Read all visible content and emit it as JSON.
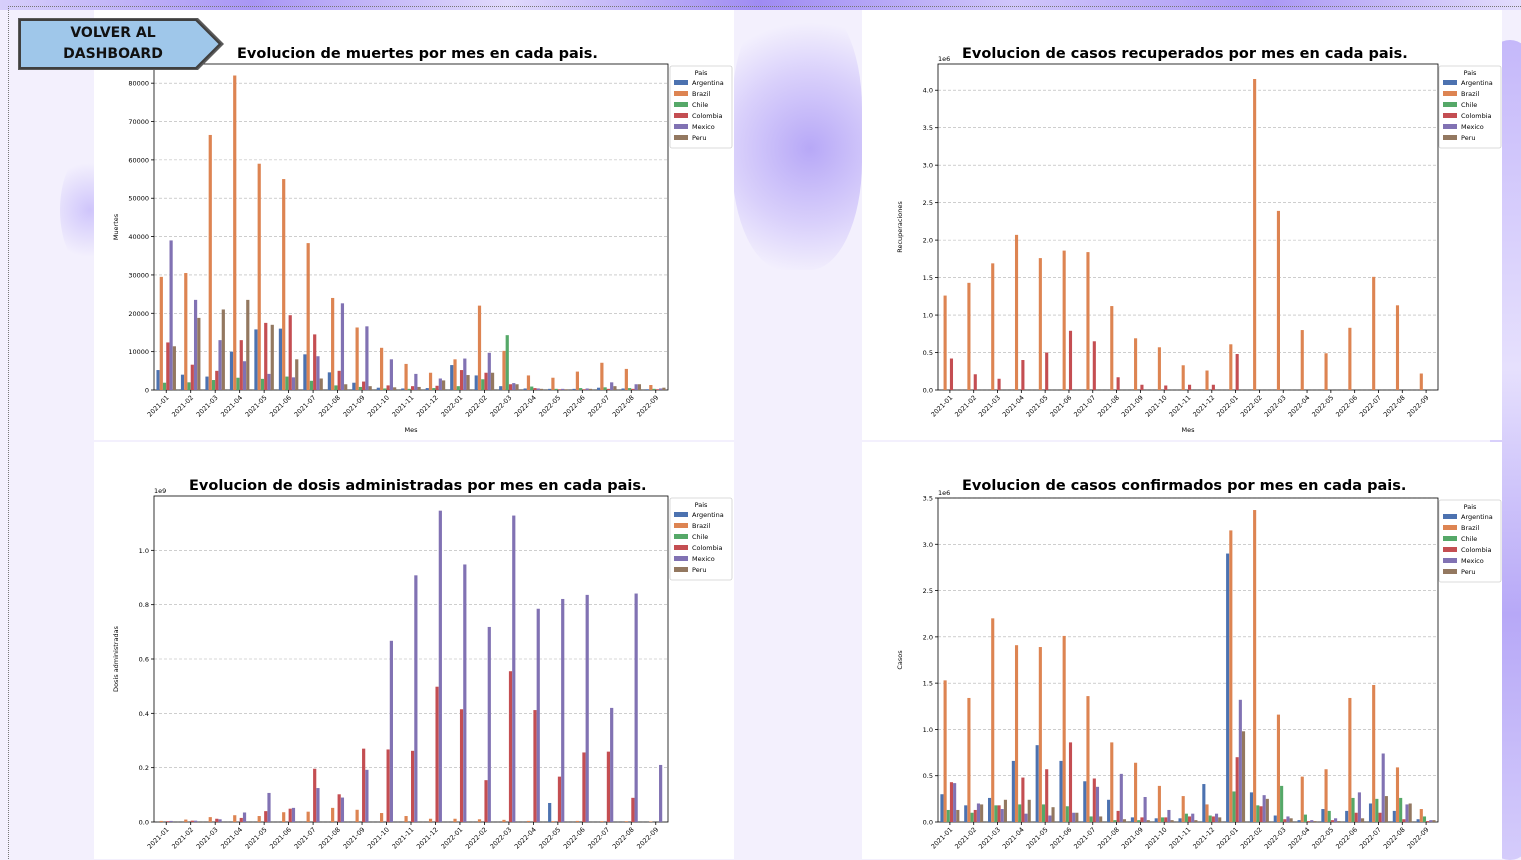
{
  "nav": {
    "back_button_label": "VOLVER AL DASHBOARD"
  },
  "colors": {
    "Argentina": "#4c72b0",
    "Brazil": "#dd8452",
    "Chile": "#55a868",
    "Colombia": "#c44e52",
    "Mexico": "#8172b3",
    "Peru": "#937860"
  },
  "chart_data": [
    {
      "id": "muertes",
      "type": "bar",
      "title": "Evolucion de muertes por mes en cada pais.",
      "xlabel": "Mes",
      "ylabel": "Muertes",
      "scale_label": "",
      "ylim": [
        0,
        85000
      ],
      "yticks": [
        0,
        10000,
        20000,
        30000,
        40000,
        50000,
        60000,
        70000,
        80000
      ],
      "ytick_labels": [
        "0",
        "10000",
        "20000",
        "30000",
        "40000",
        "50000",
        "60000",
        "70000",
        "80000"
      ],
      "legend_title": "Pais",
      "legend_position": "top-right",
      "grid": true,
      "categories": [
        "2021-01",
        "2021-02",
        "2021-03",
        "2021-04",
        "2021-05",
        "2021-06",
        "2021-07",
        "2021-08",
        "2021-09",
        "2021-10",
        "2021-11",
        "2021-12",
        "2022-01",
        "2022-02",
        "2022-03",
        "2022-04",
        "2022-05",
        "2022-06",
        "2022-07",
        "2022-08",
        "2022-09"
      ],
      "series": [
        {
          "name": "Argentina",
          "values": [
            5200,
            4000,
            3500,
            10000,
            15800,
            16000,
            9300,
            4600,
            1900,
            600,
            400,
            500,
            6500,
            3800,
            1000,
            400,
            300,
            300,
            600,
            400,
            200
          ]
        },
        {
          "name": "Brazil",
          "values": [
            29500,
            30500,
            66500,
            82000,
            59000,
            55000,
            38300,
            24000,
            16300,
            11000,
            6800,
            4500,
            8000,
            22000,
            10200,
            3800,
            3200,
            4800,
            7100,
            5500,
            1300
          ]
        },
        {
          "name": "Chile",
          "values": [
            1900,
            2000,
            2600,
            3200,
            2900,
            3500,
            2400,
            1200,
            800,
            400,
            300,
            500,
            1000,
            2800,
            14300,
            900,
            300,
            500,
            700,
            500,
            300
          ]
        },
        {
          "name": "Colombia",
          "values": [
            12400,
            6600,
            5000,
            13000,
            17500,
            19500,
            14500,
            5000,
            2200,
            1200,
            1000,
            1100,
            5200,
            4500,
            1500,
            500,
            200,
            200,
            300,
            300,
            200
          ]
        },
        {
          "name": "Mexico",
          "values": [
            39000,
            23500,
            13000,
            7500,
            4200,
            3300,
            8800,
            22600,
            16600,
            8000,
            4200,
            3000,
            8200,
            9700,
            1800,
            400,
            300,
            400,
            2000,
            1500,
            400
          ]
        },
        {
          "name": "Peru",
          "values": [
            11400,
            18800,
            21000,
            23500,
            17000,
            8000,
            3000,
            1500,
            1000,
            700,
            800,
            2500,
            3900,
            4500,
            1500,
            300,
            200,
            300,
            1000,
            1500,
            600
          ]
        }
      ]
    },
    {
      "id": "recuperados",
      "type": "bar",
      "title": "Evolucion de casos recuperados por mes en cada pais.",
      "xlabel": "Mes",
      "ylabel": "Recuperaciones",
      "scale_label": "1e6",
      "ylim": [
        0,
        4.35
      ],
      "yticks": [
        0,
        0.5,
        1.0,
        1.5,
        2.0,
        2.5,
        3.0,
        3.5,
        4.0
      ],
      "ytick_labels": [
        "0.0",
        "0.5",
        "1.0",
        "1.5",
        "2.0",
        "2.5",
        "3.0",
        "3.5",
        "4.0"
      ],
      "legend_title": "Pais",
      "legend_position": "top-right",
      "grid": true,
      "categories": [
        "2021-01",
        "2021-02",
        "2021-03",
        "2021-04",
        "2021-05",
        "2021-06",
        "2021-07",
        "2021-08",
        "2021-09",
        "2021-10",
        "2021-11",
        "2021-12",
        "2022-01",
        "2022-02",
        "2022-03",
        "2022-04",
        "2022-05",
        "2022-06",
        "2022-07",
        "2022-08",
        "2022-09"
      ],
      "series": [
        {
          "name": "Argentina",
          "values": [
            0,
            0,
            0,
            0,
            0,
            0,
            0,
            0,
            0,
            0,
            0,
            0,
            0,
            0,
            0,
            0,
            0,
            0,
            0,
            0,
            0
          ]
        },
        {
          "name": "Brazil",
          "values": [
            1.26,
            1.43,
            1.69,
            2.07,
            1.76,
            1.86,
            1.84,
            1.12,
            0.69,
            0.57,
            0.33,
            0.26,
            0.61,
            4.15,
            2.39,
            0.8,
            0.49,
            0.83,
            1.51,
            1.13,
            0.22
          ]
        },
        {
          "name": "Chile",
          "values": [
            0,
            0,
            0,
            0,
            0,
            0,
            0,
            0,
            0,
            0,
            0,
            0,
            0,
            0,
            0,
            0,
            0,
            0,
            0,
            0,
            0
          ]
        },
        {
          "name": "Colombia",
          "values": [
            0.42,
            0.21,
            0.15,
            0.4,
            0.5,
            0.79,
            0.65,
            0.17,
            0.07,
            0.06,
            0.07,
            0.07,
            0.48,
            0,
            0,
            0,
            0,
            0,
            0,
            0,
            0
          ]
        },
        {
          "name": "Mexico",
          "values": [
            0,
            0,
            0,
            0,
            0,
            0,
            0,
            0,
            0,
            0,
            0,
            0,
            0,
            0,
            0,
            0,
            0,
            0,
            0,
            0,
            0
          ]
        },
        {
          "name": "Peru",
          "values": [
            0,
            0,
            0,
            0,
            0,
            0,
            0,
            0,
            0,
            0,
            0,
            0,
            0,
            0,
            0,
            0,
            0,
            0,
            0,
            0,
            0
          ]
        }
      ]
    },
    {
      "id": "dosis",
      "type": "bar",
      "title": "Evolucion de dosis administradas por mes en cada pais.",
      "xlabel": "Mes",
      "ylabel": "Dosis administradas",
      "scale_label": "1e9",
      "ylim": [
        0,
        1.2
      ],
      "yticks": [
        0,
        0.2,
        0.4,
        0.6,
        0.8,
        1.0
      ],
      "ytick_labels": [
        "0.0",
        "0.2",
        "0.4",
        "0.6",
        "0.8",
        "1.0"
      ],
      "legend_title": "Pais",
      "legend_position": "top-right",
      "grid": true,
      "categories": [
        "2021-01",
        "2021-02",
        "2021-03",
        "2021-04",
        "2021-05",
        "2021-06",
        "2021-07",
        "2021-08",
        "2021-09",
        "2021-10",
        "2021-11",
        "2021-12",
        "2022-01",
        "2022-02",
        "2022-03",
        "2022-04",
        "2022-05",
        "2022-06",
        "2022-07",
        "2022-08",
        "2022-09"
      ],
      "series": [
        {
          "name": "Argentina",
          "values": [
            0,
            0,
            0,
            0,
            0,
            0,
            0,
            0,
            0,
            0,
            0,
            0,
            0,
            0,
            0,
            0,
            0.07,
            0,
            0,
            0,
            0
          ]
        },
        {
          "name": "Brazil",
          "values": [
            0.004,
            0.009,
            0.018,
            0.025,
            0.022,
            0.036,
            0.038,
            0.052,
            0.045,
            0.033,
            0.022,
            0.012,
            0.012,
            0.01,
            0.008,
            0.004,
            0.003,
            0.004,
            0.003,
            0.003,
            0.002
          ]
        },
        {
          "name": "Chile",
          "values": [
            0,
            0,
            0,
            0,
            0,
            0,
            0,
            0,
            0,
            0,
            0,
            0,
            0,
            0,
            0,
            0,
            0,
            0,
            0,
            0,
            0
          ]
        },
        {
          "name": "Colombia",
          "values": [
            0.003,
            0.005,
            0.012,
            0.015,
            0.04,
            0.049,
            0.196,
            0.102,
            0.27,
            0.267,
            0.262,
            0.498,
            0.415,
            0.154,
            0.555,
            0.412,
            0.167,
            0.256,
            0.259,
            0.089,
            0
          ]
        },
        {
          "name": "Mexico",
          "values": [
            0.004,
            0.005,
            0.01,
            0.035,
            0.107,
            0.052,
            0.125,
            0.09,
            0.192,
            0.667,
            0.908,
            1.146,
            0.948,
            0.718,
            1.128,
            0.785,
            0.821,
            0.836,
            0.42,
            0.841,
            0.21
          ]
        },
        {
          "name": "Peru",
          "values": [
            0,
            0,
            0,
            0,
            0,
            0,
            0,
            0,
            0,
            0,
            0,
            0,
            0,
            0,
            0,
            0,
            0,
            0,
            0,
            0,
            0
          ]
        }
      ]
    },
    {
      "id": "confirmados",
      "type": "bar",
      "title": "Evolucion de casos confirmados por mes en cada pais.",
      "xlabel": "Mes",
      "ylabel": "Casos",
      "scale_label": "1e6",
      "ylim": [
        0,
        3.5
      ],
      "yticks": [
        0,
        0.5,
        1.0,
        1.5,
        2.0,
        2.5,
        3.0,
        3.5
      ],
      "ytick_labels": [
        "0.0",
        "0.5",
        "1.0",
        "1.5",
        "2.0",
        "2.5",
        "3.0",
        "3.5"
      ],
      "legend_title": "Pais",
      "legend_position": "top-right",
      "grid": true,
      "categories": [
        "2021-01",
        "2021-02",
        "2021-03",
        "2021-04",
        "2021-05",
        "2021-06",
        "2021-07",
        "2021-08",
        "2021-09",
        "2021-10",
        "2021-11",
        "2021-12",
        "2022-01",
        "2022-02",
        "2022-03",
        "2022-04",
        "2022-05",
        "2022-06",
        "2022-07",
        "2022-08",
        "2022-09"
      ],
      "series": [
        {
          "name": "Argentina",
          "values": [
            0.3,
            0.18,
            0.26,
            0.66,
            0.83,
            0.66,
            0.44,
            0.24,
            0.05,
            0.04,
            0.04,
            0.41,
            2.9,
            0.32,
            0.07,
            0.02,
            0.14,
            0.12,
            0.2,
            0.12,
            0.03
          ]
        },
        {
          "name": "Brazil",
          "values": [
            1.53,
            1.34,
            2.2,
            1.91,
            1.89,
            2.01,
            1.36,
            0.86,
            0.64,
            0.39,
            0.28,
            0.19,
            3.15,
            3.37,
            1.16,
            0.49,
            0.57,
            1.34,
            1.48,
            0.59,
            0.14
          ]
        },
        {
          "name": "Chile",
          "values": [
            0.13,
            0.1,
            0.18,
            0.19,
            0.19,
            0.17,
            0.06,
            0.02,
            0.02,
            0.05,
            0.09,
            0.07,
            0.33,
            0.18,
            0.39,
            0.08,
            0.12,
            0.26,
            0.25,
            0.26,
            0.06
          ]
        },
        {
          "name": "Colombia",
          "values": [
            0.43,
            0.13,
            0.18,
            0.48,
            0.57,
            0.86,
            0.47,
            0.12,
            0.05,
            0.05,
            0.06,
            0.06,
            0.7,
            0.17,
            0.03,
            0.01,
            0.02,
            0.1,
            0.1,
            0.03,
            0.01
          ]
        },
        {
          "name": "Mexico",
          "values": [
            0.42,
            0.2,
            0.14,
            0.09,
            0.07,
            0.1,
            0.38,
            0.52,
            0.27,
            0.13,
            0.09,
            0.09,
            1.32,
            0.29,
            0.06,
            0.02,
            0.04,
            0.32,
            0.74,
            0.19,
            0.02
          ]
        },
        {
          "name": "Peru",
          "values": [
            0.13,
            0.19,
            0.24,
            0.24,
            0.16,
            0.1,
            0.06,
            0.03,
            0.02,
            0.02,
            0.02,
            0.05,
            0.98,
            0.25,
            0.04,
            0.01,
            0.01,
            0.04,
            0.28,
            0.2,
            0.02
          ]
        }
      ]
    }
  ]
}
